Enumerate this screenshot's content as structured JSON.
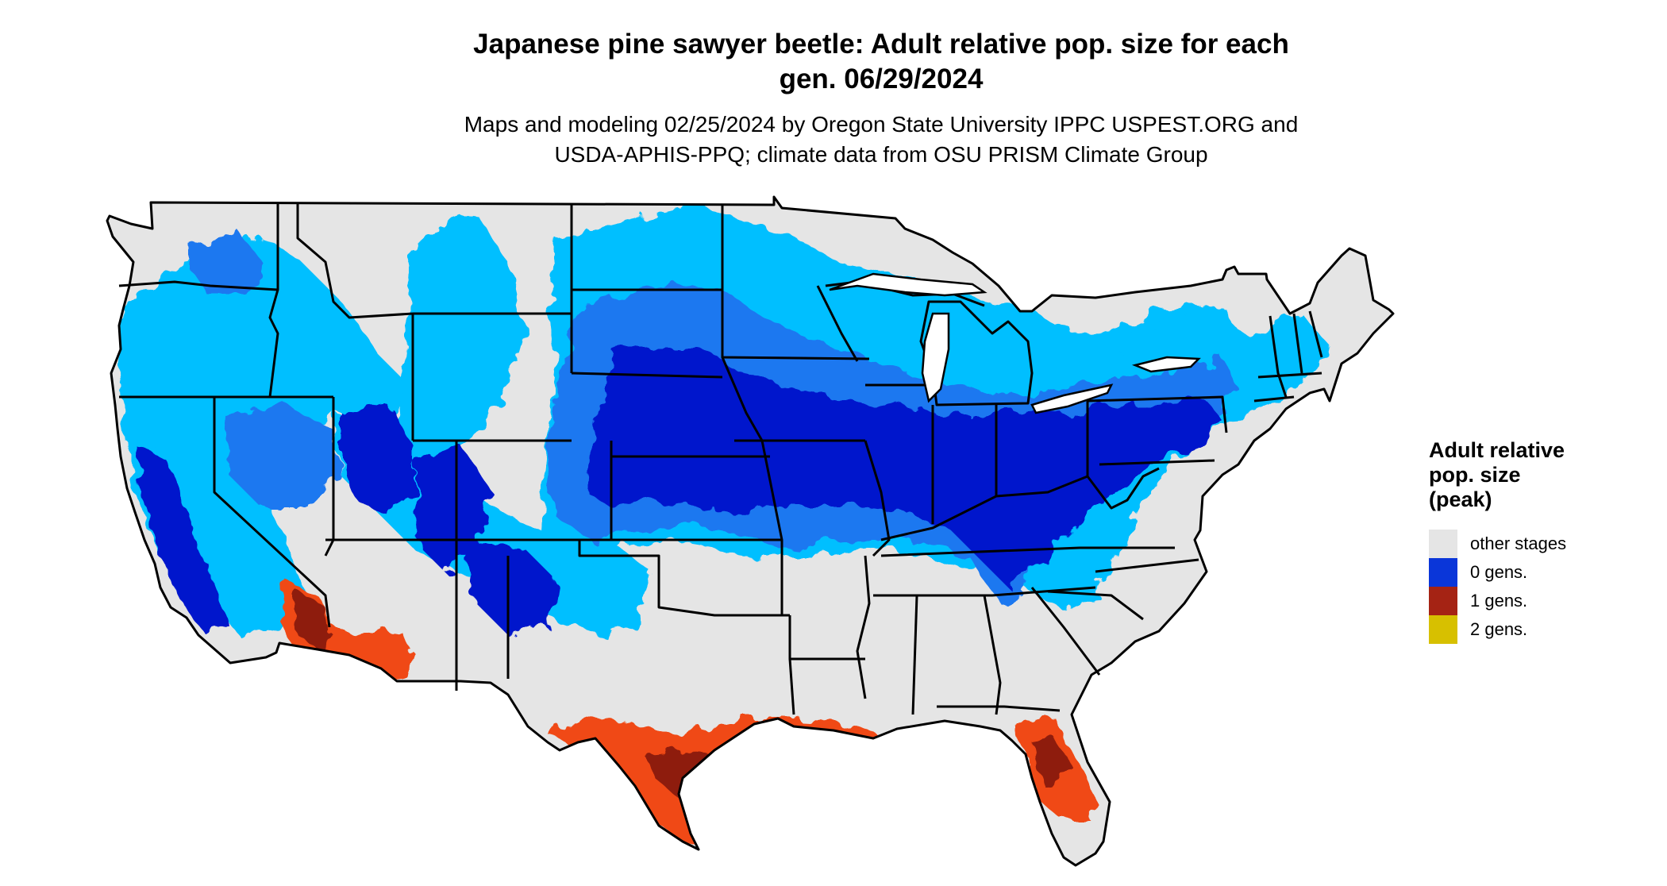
{
  "title": {
    "line1": "Japanese pine sawyer beetle: Adult relative pop. size for each",
    "line2": "gen. 06/29/2024"
  },
  "subtitle": {
    "line1": "Maps and modeling 02/25/2024 by Oregon State University IPPC USPEST.ORG and",
    "line2": "USDA-APHIS-PPQ; climate data from OSU PRISM Climate Group"
  },
  "legend": {
    "title_line1": "Adult relative",
    "title_line2": "pop. size",
    "title_line3": "(peak)",
    "items": [
      {
        "label": "other stages",
        "color": "#e5e5e5"
      },
      {
        "label": "0 gens.",
        "color": "#0a36d9"
      },
      {
        "label": "1 gens.",
        "color": "#a52314"
      },
      {
        "label": "2 gens.",
        "color": "#d7c000"
      }
    ]
  },
  "map_colors": {
    "background": "#e5e5e5",
    "zero_gens_light": "#00bfff",
    "zero_gens_mid": "#1e78f0",
    "zero_gens_dark": "#0018cc",
    "one_gen_orange": "#f04a12",
    "one_gen_dark": "#8e1a0e",
    "borders": "#000000"
  }
}
